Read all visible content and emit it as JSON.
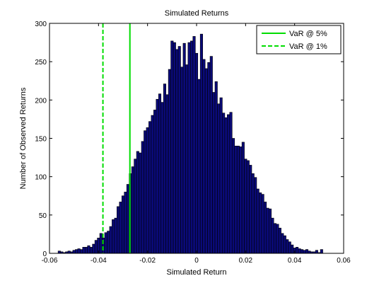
{
  "chart_data": {
    "type": "bar",
    "title": "Simulated Returns",
    "xlabel": "Simulated Return",
    "ylabel": "Number of Observed Returns",
    "xlim": [
      -0.06,
      0.06
    ],
    "ylim": [
      0,
      300
    ],
    "xticks": [
      -0.06,
      -0.04,
      -0.02,
      0,
      0.02,
      0.04,
      0.06
    ],
    "xtick_labels": [
      "-0.06",
      "-0.04",
      "-0.02",
      "0",
      "0.02",
      "0.04",
      "0.06"
    ],
    "yticks": [
      0,
      50,
      100,
      150,
      200,
      250,
      300
    ],
    "ytick_labels": [
      "0",
      "50",
      "100",
      "150",
      "200",
      "250",
      "300"
    ],
    "grid": false,
    "legend_position": "top-right",
    "bar_color": "#0a0a78",
    "bar_edge_color": "#000000",
    "bins": {
      "start": -0.0565,
      "width": 0.001,
      "counts": [
        3,
        2,
        1,
        2,
        3,
        2,
        4,
        5,
        6,
        5,
        8,
        8,
        10,
        8,
        12,
        17,
        20,
        26,
        20,
        27,
        29,
        35,
        44,
        46,
        61,
        67,
        75,
        80,
        90,
        104,
        113,
        123,
        133,
        131,
        146,
        160,
        164,
        172,
        180,
        187,
        201,
        208,
        197,
        221,
        207,
        240,
        277,
        275,
        266,
        270,
        243,
        274,
        246,
        275,
        277,
        283,
        261,
        227,
        286,
        253,
        241,
        249,
        257,
        210,
        224,
        195,
        203,
        183,
        177,
        181,
        184,
        150,
        140,
        140,
        139,
        145,
        123,
        121,
        115,
        104,
        99,
        84,
        79,
        77,
        67,
        59,
        58,
        46,
        39,
        38,
        33,
        26,
        23,
        18,
        15,
        11,
        7,
        8,
        6,
        5,
        4,
        5,
        3,
        2,
        2,
        4,
        1,
        5
      ]
    },
    "var_lines": [
      {
        "name": "VaR @ 5%",
        "x": -0.0272,
        "style": "solid",
        "color": "#00dd00"
      },
      {
        "name": "VaR @ 1%",
        "x": -0.0382,
        "style": "dashed",
        "color": "#00dd00"
      }
    ]
  }
}
